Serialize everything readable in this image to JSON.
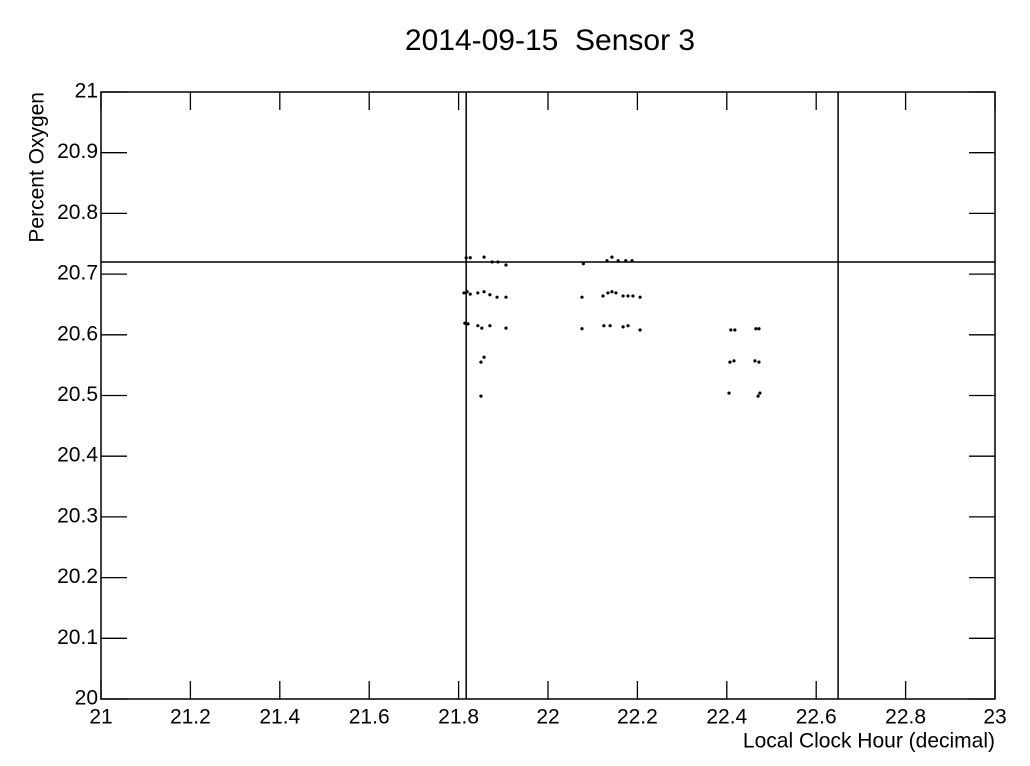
{
  "chart_data": {
    "type": "scatter",
    "title": "2014-09-15  Sensor 3",
    "x_label": "Local Clock Hour (decimal)",
    "y_label": "Percent Oxygen",
    "xlim": [
      21,
      23
    ],
    "ylim": [
      20,
      21
    ],
    "xticks": [
      21,
      21.2,
      21.4,
      21.6,
      21.8,
      22,
      22.2,
      22.4,
      22.6,
      22.8,
      23
    ],
    "yticks": [
      20,
      20.1,
      20.2,
      20.3,
      20.4,
      20.5,
      20.6,
      20.7,
      20.8,
      20.9,
      21
    ],
    "vlines": [
      21.817,
      22.649
    ],
    "hline": 20.72,
    "color": "#000000",
    "x": [
      21.817,
      21.826,
      21.857,
      21.875,
      21.888,
      21.906,
      21.812,
      21.819,
      21.826,
      21.843,
      21.857,
      21.87,
      21.886,
      21.906,
      21.814,
      21.821,
      21.843,
      21.852,
      21.87,
      21.906,
      21.85,
      21.857,
      21.85,
      22.079,
      22.132,
      22.143,
      22.157,
      22.174,
      22.188,
      22.076,
      22.123,
      22.134,
      22.143,
      22.152,
      22.168,
      22.179,
      22.19,
      22.206,
      22.076,
      22.125,
      22.139,
      22.168,
      22.179,
      22.206,
      22.409,
      22.418,
      22.465,
      22.472,
      22.407,
      22.416,
      22.463,
      22.472,
      22.405,
      22.47,
      22.474
    ],
    "y": [
      20.727,
      20.727,
      20.728,
      20.72,
      20.72,
      20.715,
      20.669,
      20.671,
      20.667,
      20.669,
      20.671,
      20.666,
      20.662,
      20.662,
      20.619,
      20.618,
      20.615,
      20.611,
      20.615,
      20.611,
      20.555,
      20.563,
      20.499,
      20.717,
      20.722,
      20.728,
      20.722,
      20.722,
      20.722,
      20.662,
      20.664,
      20.669,
      20.671,
      20.669,
      20.664,
      20.664,
      20.664,
      20.662,
      20.61,
      20.615,
      20.615,
      20.613,
      20.615,
      20.608,
      20.608,
      20.608,
      20.61,
      20.61,
      20.555,
      20.557,
      20.557,
      20.555,
      20.504,
      20.499,
      20.504
    ]
  }
}
